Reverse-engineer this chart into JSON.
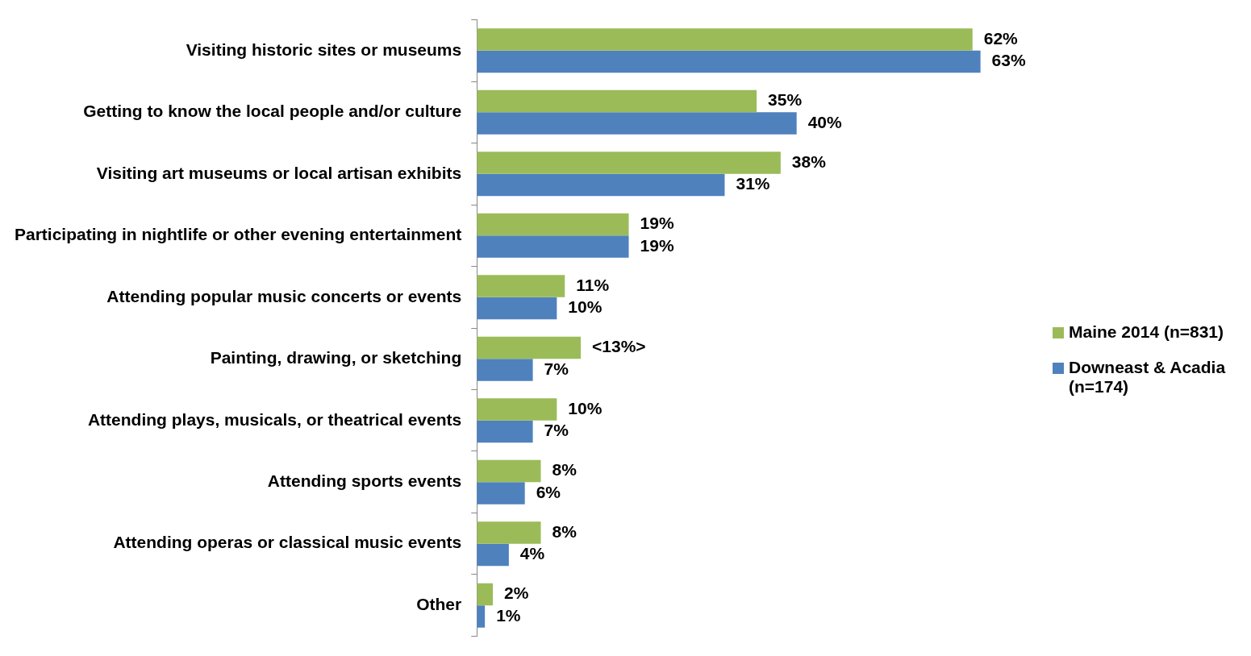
{
  "chart_data": {
    "type": "bar",
    "orientation": "horizontal",
    "legend": "right",
    "categories": [
      "Visiting historic sites or museums",
      "Getting to know the local people and/or culture",
      "Visiting art museums or local artisan exhibits",
      "Participating in nightlife or other evening entertainment",
      "Attending popular music concerts or events",
      "Painting, drawing, or sketching",
      "Attending plays, musicals, or theatrical events",
      "Attending sports events",
      "Attending operas or classical music events",
      "Other"
    ],
    "series": [
      {
        "name": "Maine 2014 (n=831)",
        "color": "#9bbb59",
        "values": [
          62,
          35,
          38,
          19,
          11,
          13,
          10,
          8,
          8,
          2
        ],
        "value_labels": [
          "62%",
          "35%",
          "38%",
          "19%",
          "11%",
          "<13%>",
          "10%",
          "8%",
          "8%",
          "2%"
        ]
      },
      {
        "name": "Downeast & Acadia (n=174)",
        "color": "#4f81bd",
        "values": [
          63,
          40,
          31,
          19,
          10,
          7,
          7,
          6,
          4,
          1
        ],
        "value_labels": [
          "63%",
          "40%",
          "31%",
          "19%",
          "10%",
          "7%",
          "7%",
          "6%",
          "4%",
          "1%"
        ]
      }
    ]
  }
}
